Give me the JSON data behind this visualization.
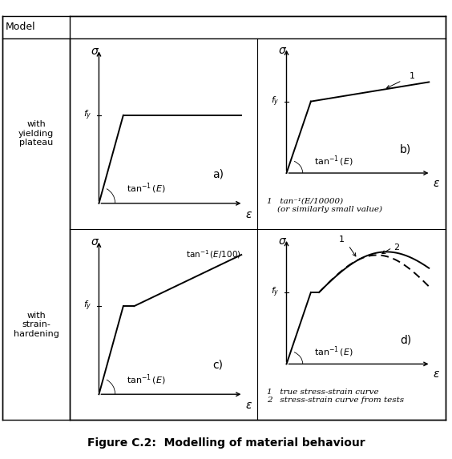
{
  "title": "Figure C.2:  Modelling of material behaviour",
  "title_fontsize": 10,
  "fig_bg": "#ffffff",
  "note_b_line1": "1   tan⁻¹(E/10000)",
  "note_b_line2": "    (or similarly small value)",
  "note_d_line1": "1   true stress-strain curve",
  "note_d_line2": "2   stress-strain curve from tests",
  "model_label": "Model",
  "row1_label": "with\nyielding\nplateau",
  "row2_label": "with\nstrain-\nhardening",
  "subplot_labels": [
    "a)",
    "b)",
    "c)",
    "d)"
  ],
  "curve_lw": 1.4,
  "axis_lw": 1.0,
  "grid_lw": 0.8,
  "font_sigma": 10,
  "font_epsilon": 10,
  "font_fy": 8,
  "font_label": 9,
  "font_tan": 8,
  "font_sublabel": 10,
  "font_row": 8,
  "font_note": 7.5
}
